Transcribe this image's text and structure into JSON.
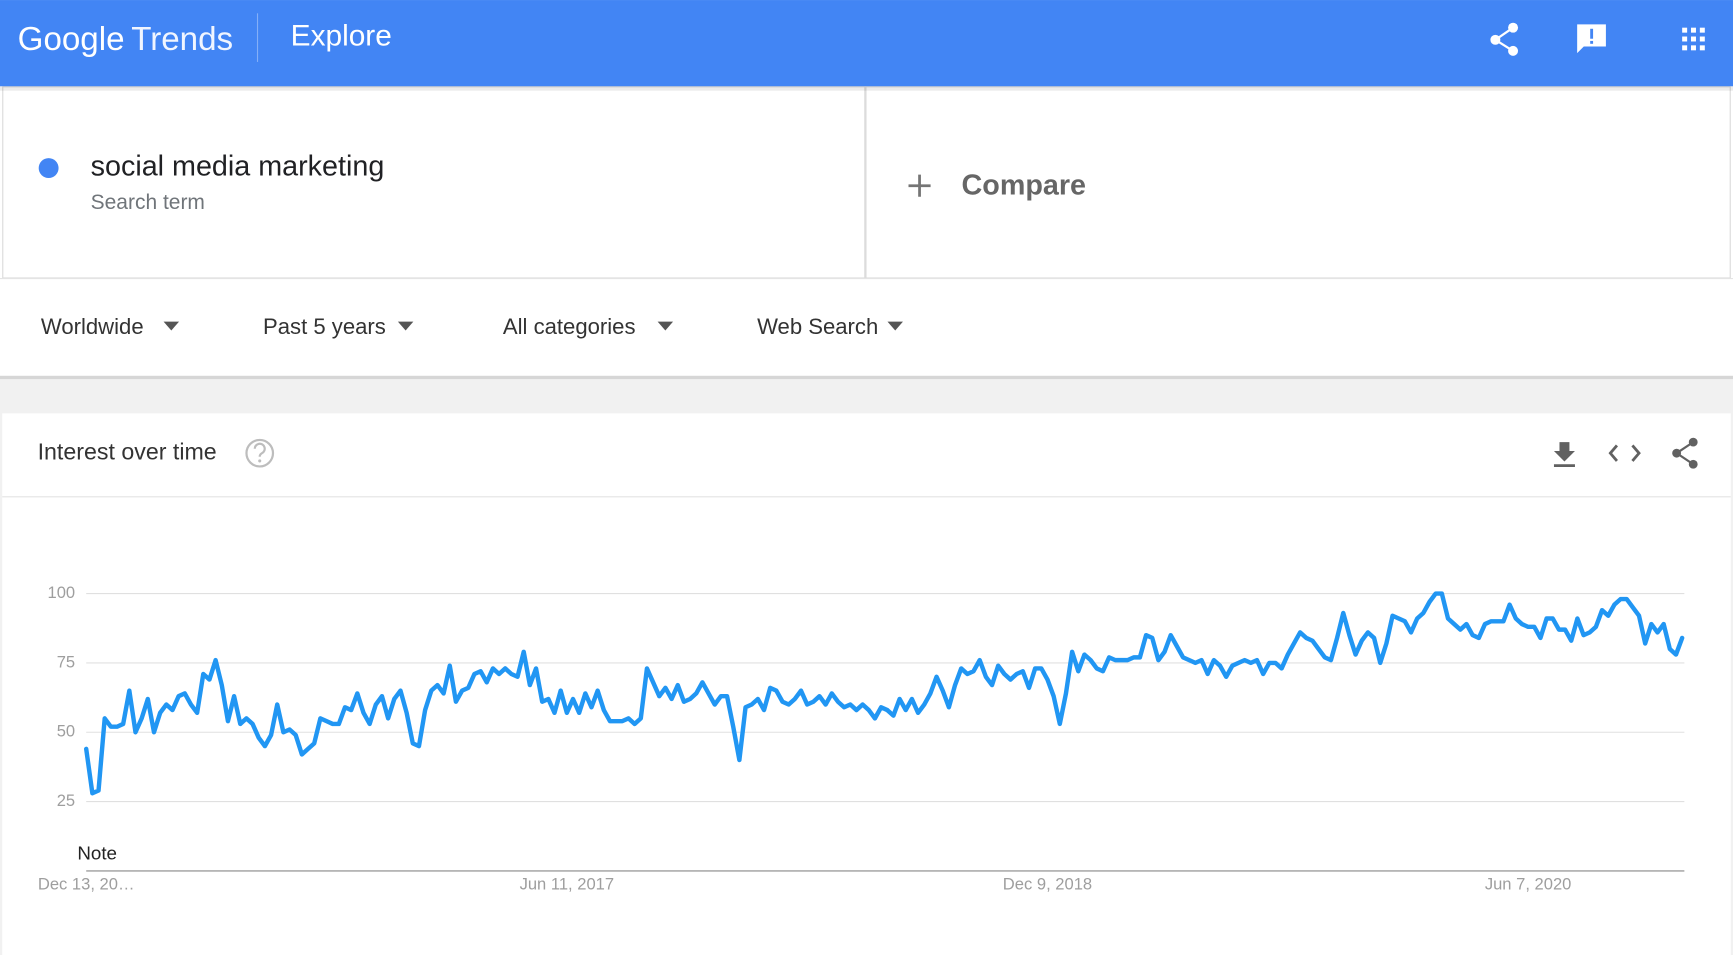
{
  "header": {
    "logo": "Google",
    "product": "Trends",
    "page": "Explore"
  },
  "search": {
    "term": "social media marketing",
    "term_type": "Search term",
    "compare": "Compare"
  },
  "filters": [
    "Worldwide",
    "Past 5 years",
    "All categories",
    "Web Search"
  ],
  "card": {
    "title": "Interest over time",
    "note": "Note"
  },
  "chart_data": {
    "type": "line",
    "categories": [
      "Dec 13, 20…",
      null,
      null,
      null,
      null,
      null,
      null,
      null,
      null,
      null,
      null,
      null,
      null,
      null,
      null,
      null,
      null,
      null,
      null,
      null,
      null,
      null,
      null,
      null,
      null,
      null,
      null,
      null,
      null,
      null,
      null,
      null,
      null,
      null,
      null,
      null,
      null,
      null,
      null,
      null,
      null,
      null,
      null,
      null,
      null,
      null,
      null,
      null,
      null,
      null,
      null,
      null,
      null,
      null,
      null,
      null,
      null,
      null,
      null,
      null,
      null,
      null,
      null,
      null,
      null,
      null,
      null,
      null,
      null,
      null,
      null,
      null,
      null,
      null,
      null,
      null,
      null,
      null,
      "Jun 11, 2017",
      null,
      null,
      null,
      null,
      null,
      null,
      null,
      null,
      null,
      null,
      null,
      null,
      null,
      null,
      null,
      null,
      null,
      null,
      null,
      null,
      null,
      null,
      null,
      null,
      null,
      null,
      null,
      null,
      null,
      null,
      null,
      null,
      null,
      null,
      null,
      null,
      null,
      null,
      null,
      null,
      null,
      null,
      null,
      null,
      null,
      null,
      null,
      null,
      null,
      null,
      null,
      null,
      null,
      null,
      null,
      null,
      null,
      null,
      null,
      null,
      null,
      null,
      null,
      null,
      null,
      null,
      null,
      null,
      null,
      null,
      null,
      null,
      null,
      null,
      null,
      null,
      null,
      "Dec 9, 2018",
      null,
      null,
      null,
      null,
      null,
      null,
      null,
      null,
      null,
      null,
      null,
      null,
      null,
      null,
      null,
      null,
      null,
      null,
      null,
      null,
      null,
      null,
      null,
      null,
      null,
      null,
      null,
      null,
      null,
      null,
      null,
      null,
      null,
      null,
      null,
      null,
      null,
      null,
      null,
      null,
      null,
      null,
      null,
      null,
      null,
      null,
      null,
      null,
      null,
      null,
      null,
      null,
      null,
      null,
      null,
      null,
      null,
      null,
      null,
      null,
      null,
      null,
      null,
      null,
      null,
      null,
      null,
      null,
      null,
      null,
      null,
      null,
      null,
      null,
      null,
      null,
      null,
      "Jun 7, 2020",
      null,
      null,
      null,
      null,
      null,
      null,
      null,
      null,
      null,
      null,
      null,
      null,
      null,
      null,
      null,
      null,
      null,
      null,
      null,
      null,
      null,
      null,
      null,
      null,
      null
    ],
    "values": [
      44,
      28,
      29,
      55,
      52,
      52,
      53,
      65,
      50,
      55,
      62,
      50,
      57,
      60,
      58,
      63,
      64,
      60,
      57,
      71,
      69,
      76,
      67,
      54,
      63,
      53,
      55,
      53,
      48,
      45,
      49,
      60,
      50,
      51,
      49,
      42,
      44,
      46,
      55,
      54,
      53,
      53,
      59,
      58,
      64,
      57,
      53,
      60,
      63,
      55,
      62,
      65,
      57,
      46,
      45,
      58,
      65,
      67,
      64,
      74,
      61,
      65,
      66,
      71,
      72,
      68,
      73,
      71,
      73,
      71,
      70,
      79,
      67,
      73,
      61,
      62,
      57,
      65,
      57,
      62,
      57,
      64,
      59,
      65,
      58,
      54,
      54,
      54,
      55,
      53,
      55,
      73,
      68,
      63,
      66,
      62,
      67,
      61,
      62,
      64,
      68,
      64,
      60,
      63,
      63,
      52,
      40,
      59,
      60,
      62,
      58,
      66,
      65,
      61,
      60,
      62,
      65,
      60,
      61,
      63,
      60,
      64,
      61,
      59,
      60,
      58,
      60,
      58,
      55,
      59,
      58,
      56,
      62,
      58,
      62,
      57,
      60,
      64,
      70,
      65,
      59,
      67,
      73,
      71,
      72,
      76,
      70,
      67,
      74,
      71,
      69,
      71,
      72,
      66,
      73,
      73,
      69,
      63,
      53,
      64,
      79,
      72,
      78,
      76,
      73,
      72,
      77,
      76,
      76,
      76,
      77,
      77,
      85,
      84,
      76,
      79,
      85,
      81,
      77,
      76,
      75,
      76,
      71,
      76,
      74,
      70,
      74,
      75,
      76,
      75,
      76,
      71,
      75,
      75,
      73,
      78,
      82,
      86,
      84,
      83,
      80,
      77,
      76,
      84,
      93,
      85,
      78,
      83,
      86,
      84,
      75,
      82,
      92,
      91,
      90,
      86,
      91,
      93,
      97,
      100,
      100,
      91,
      89,
      87,
      89,
      85,
      84,
      89,
      90,
      90,
      90,
      96,
      91,
      89,
      88,
      88,
      84,
      91,
      91,
      87,
      87,
      83,
      91,
      85,
      86,
      88,
      94,
      92,
      96,
      98,
      98,
      95,
      92,
      82,
      89,
      86,
      89,
      80,
      78,
      84
    ],
    "color": "#2196f3",
    "ylim": [
      0,
      100
    ],
    "yticks": [
      25,
      50,
      75,
      100
    ],
    "grid": true
  }
}
